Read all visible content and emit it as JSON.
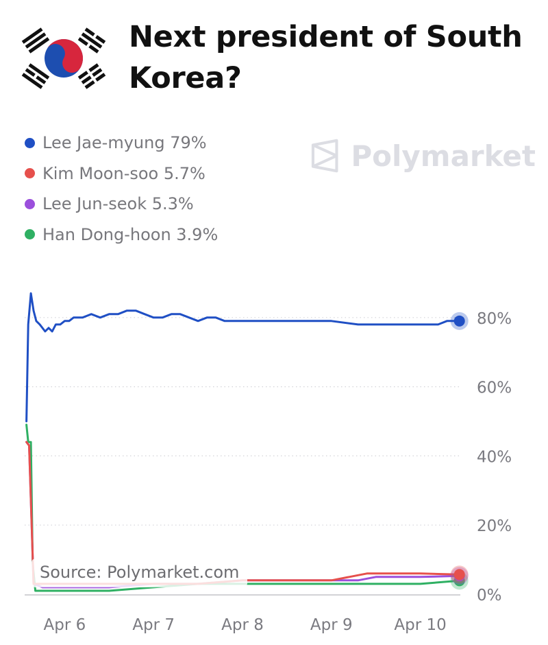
{
  "title": "Next president of South Korea?",
  "icons": {
    "flag": "south-korea-flag-icon",
    "watermark": "polymarket-logo-icon"
  },
  "watermark": "Polymarket",
  "source": "Source: Polymarket.com",
  "chart_data": {
    "type": "line",
    "title": "Next president of South Korea?",
    "x_tick_labels": [
      "Apr 6",
      "Apr 7",
      "Apr 8",
      "Apr 9",
      "Apr 10"
    ],
    "y_tick_labels": [
      "0%",
      "20%",
      "40%",
      "60%",
      "80%"
    ],
    "ylim": [
      0,
      90
    ],
    "xlim": [
      5.55,
      10.45
    ],
    "grid": "horizontal dotted",
    "legend_position": "top-left",
    "series": [
      {
        "name": "Lee Jae-myung",
        "label": "Lee Jae-myung 79%",
        "color": "#1f4fc4",
        "x": [
          5.57,
          5.59,
          5.62,
          5.65,
          5.68,
          5.72,
          5.78,
          5.82,
          5.86,
          5.9,
          5.95,
          6.0,
          6.05,
          6.1,
          6.2,
          6.3,
          6.4,
          6.5,
          6.6,
          6.7,
          6.8,
          6.9,
          7.0,
          7.1,
          7.2,
          7.3,
          7.4,
          7.5,
          7.6,
          7.7,
          7.8,
          7.9,
          8.0,
          8.5,
          9.0,
          9.3,
          9.5,
          9.8,
          10.0,
          10.2,
          10.3,
          10.44
        ],
        "y": [
          50,
          78,
          87,
          82,
          79,
          78,
          76,
          77,
          76,
          78,
          78,
          79,
          79,
          80,
          80,
          81,
          80,
          81,
          81,
          82,
          82,
          81,
          80,
          80,
          81,
          81,
          80,
          79,
          80,
          80,
          79,
          79,
          79,
          79,
          79,
          78,
          78,
          78,
          78,
          78,
          79,
          79
        ]
      },
      {
        "name": "Kim Moon-soo",
        "label": "Kim Moon-soo 5.7%",
        "color": "#e6504c",
        "x": [
          5.57,
          5.6,
          5.65,
          5.75,
          6.0,
          6.5,
          7.0,
          7.5,
          8.0,
          8.5,
          9.0,
          9.2,
          9.4,
          9.6,
          10.0,
          10.44
        ],
        "y": [
          44,
          43,
          3,
          3,
          3,
          3,
          3,
          3,
          4,
          4,
          4,
          5,
          6,
          6,
          6,
          5.7
        ]
      },
      {
        "name": "Lee Jun-seok",
        "label": "Lee Jun-seok 5.3%",
        "color": "#9b4fdc",
        "x": [
          5.57,
          5.6,
          5.65,
          5.75,
          6.0,
          6.5,
          7.0,
          7.5,
          8.0,
          8.5,
          9.0,
          9.3,
          9.5,
          9.7,
          10.0,
          10.44
        ],
        "y": [
          44,
          43,
          3,
          2,
          2,
          2,
          3,
          3,
          4,
          4,
          4,
          4,
          5,
          5,
          5,
          5.3
        ]
      },
      {
        "name": "Han Dong-hoon",
        "label": "Han Dong-hoon 3.9%",
        "color": "#2fb063",
        "x": [
          5.57,
          5.59,
          5.62,
          5.64,
          5.67,
          5.7,
          5.8,
          6.0,
          6.3,
          6.5,
          7.0,
          7.5,
          8.0,
          8.5,
          9.0,
          9.5,
          10.0,
          10.44
        ],
        "y": [
          49,
          44,
          44,
          9,
          1,
          1,
          1,
          1,
          1,
          1,
          2,
          3,
          3,
          3,
          3,
          3,
          3,
          3.9
        ]
      }
    ]
  }
}
